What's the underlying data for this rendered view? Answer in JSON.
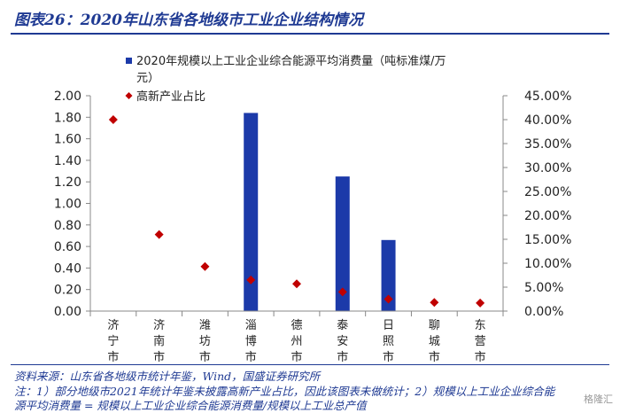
{
  "title": "图表26：2020年山东省各地级市工业企业结构情况",
  "chart_data": {
    "type": "bar",
    "categories": [
      [
        "济",
        "宁",
        "市"
      ],
      [
        "济",
        "南",
        "市"
      ],
      [
        "潍",
        "坊",
        "市"
      ],
      [
        "淄",
        "博",
        "市"
      ],
      [
        "德",
        "州",
        "市"
      ],
      [
        "泰",
        "安",
        "市"
      ],
      [
        "日",
        "照",
        "市"
      ],
      [
        "聊",
        "城",
        "市"
      ],
      [
        "东",
        "营",
        "市"
      ]
    ],
    "series": [
      {
        "name": "2020年规模以上工业企业综合能源平均消费量（吨标准煤/万元）",
        "legend_lines": [
          "2020年规模以上工业企业综合能源平均消费量（吨标准煤/万",
          "元）"
        ],
        "type": "bar",
        "axis": "left",
        "color": "#1c3aa9",
        "values": [
          null,
          null,
          null,
          1.84,
          null,
          1.25,
          0.66,
          null,
          null
        ]
      },
      {
        "name": "高新产业占比",
        "type": "scatter",
        "axis": "right",
        "color": "#c00000",
        "values": [
          40.0,
          16.0,
          9.3,
          6.5,
          5.7,
          4.0,
          2.5,
          1.8,
          1.7
        ]
      }
    ],
    "left_axis": {
      "min": 0,
      "max": 2,
      "step": 0.2,
      "ticks": [
        "0.00",
        "0.20",
        "0.40",
        "0.60",
        "0.80",
        "1.00",
        "1.20",
        "1.40",
        "1.60",
        "1.80",
        "2.00"
      ]
    },
    "right_axis": {
      "min": 0,
      "max": 45,
      "step": 5,
      "ticks": [
        "0.00%",
        "5.00%",
        "10.00%",
        "15.00%",
        "20.00%",
        "25.00%",
        "30.00%",
        "35.00%",
        "40.00%",
        "45.00%"
      ]
    },
    "legend_placement": "top-center",
    "grid": false
  },
  "notes": {
    "source": "资料来源：山东省各地级市统计年鉴，Wind，国盛证券研究所",
    "line1": "注：1）部分地级市2021年统计年鉴未披露高新产业占比，因此该图表未做统计；2）规模以上工业企业综合能",
    "line2": "源平均消费量 = 规模以上工业企业综合能源消费量/规模以上工业总产值"
  },
  "watermark": "格隆汇"
}
